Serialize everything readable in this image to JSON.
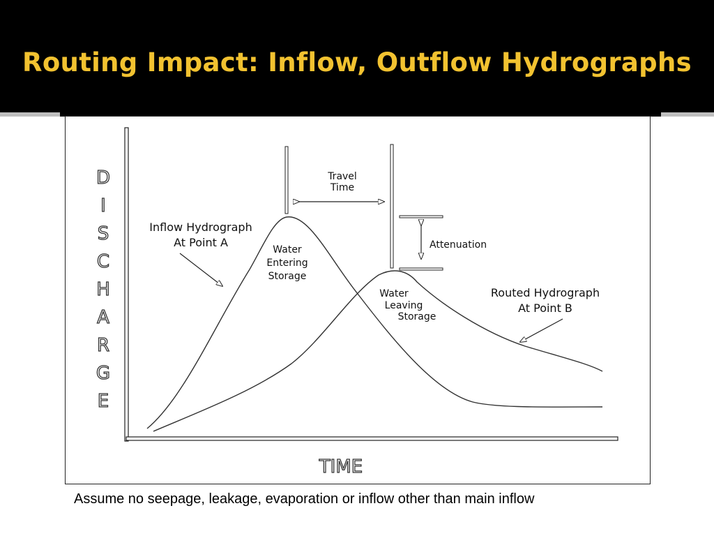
{
  "slide": {
    "title": "Routing Impact: Inflow, Outflow Hydrographs",
    "caption": "Assume no seepage, leakage, evaporation or inflow other than main inflow"
  },
  "diagram": {
    "y_axis_letters": [
      "D",
      "I",
      "S",
      "C",
      "H",
      "A",
      "R",
      "G",
      "E"
    ],
    "x_axis_label": "TIME",
    "inflow_label": [
      "Inflow Hydrograph",
      "At Point A"
    ],
    "routed_label": [
      "Routed Hydrograph",
      "At Point B"
    ],
    "entering_label": [
      "Water",
      "Entering",
      "Storage"
    ],
    "leaving_label": [
      "Water",
      "Leaving",
      "Storage"
    ],
    "travel_time_label": [
      "Travel",
      "Time"
    ],
    "attenuation_label": "Attenuation"
  }
}
